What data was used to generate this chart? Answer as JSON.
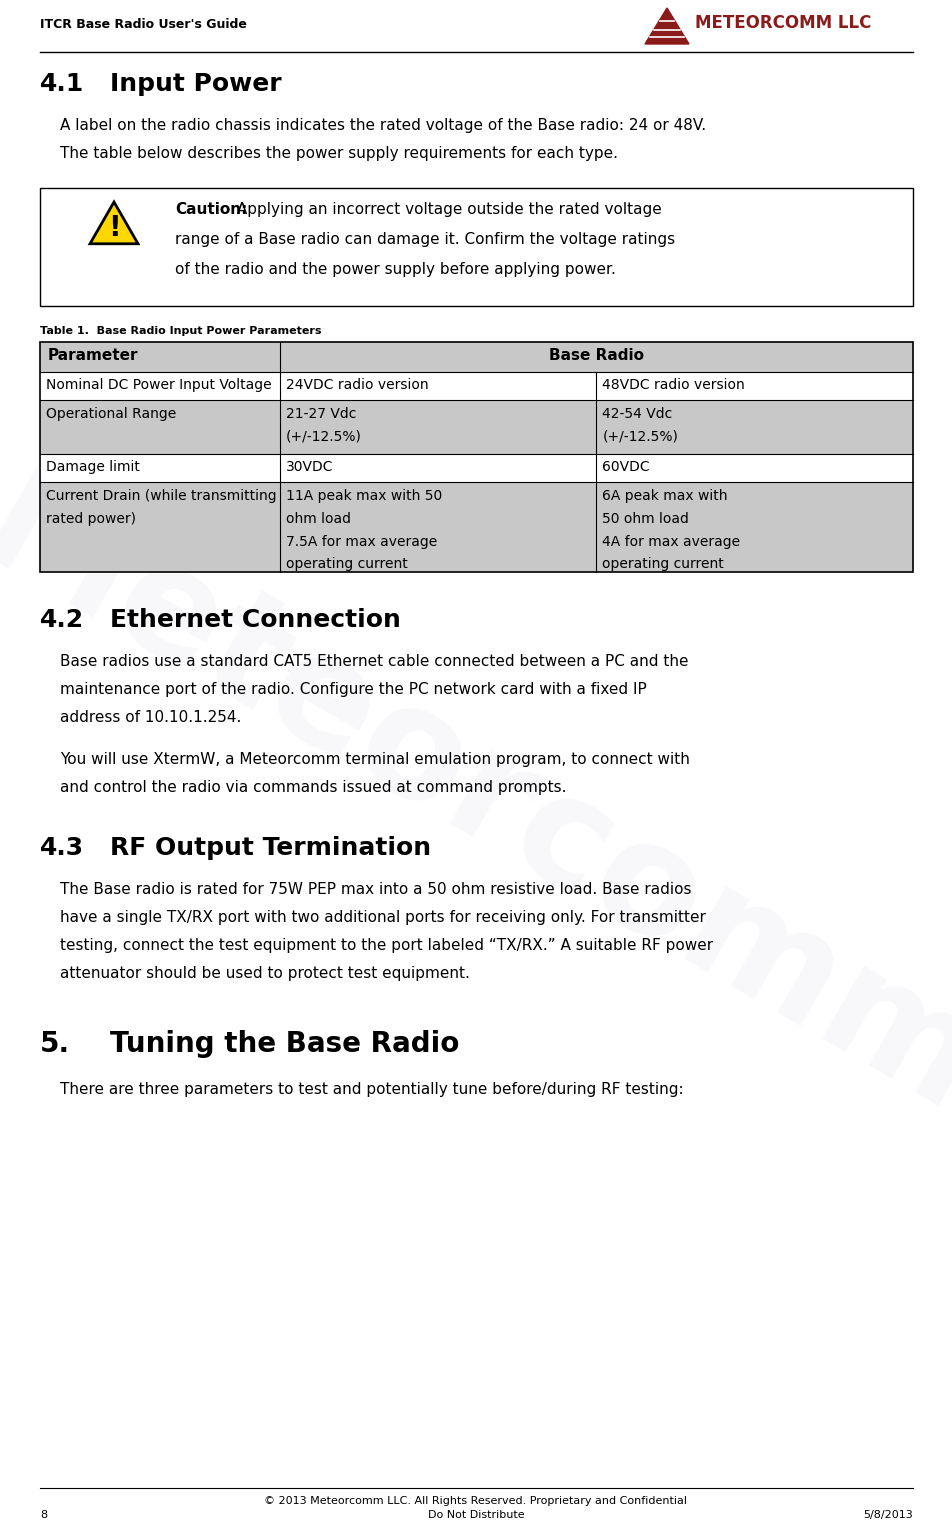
{
  "header_left": "ITCR Base Radio User's Guide",
  "logo_text": "METEORCOMM LLC",
  "meteorcomm_red": "#8B1A1A",
  "section_41_num": "4.1",
  "section_41_title": "Input Power",
  "section_41_body1_lines": [
    "A label on the radio chassis indicates the rated voltage of the Base radio: 24 or 48V.",
    "The table below describes the power supply requirements for each type."
  ],
  "caution_bold": "Caution:",
  "caution_rest_line1": " Applying an incorrect voltage outside the rated voltage",
  "caution_line2": "range of a Base radio can damage it. Confirm the voltage ratings",
  "caution_line3": "of the radio and the power supply before applying power.",
  "table_caption": "Table 1.  Base Radio Input Power Parameters",
  "col1_header": "Parameter",
  "col23_header": "Base Radio",
  "row0": [
    "Nominal DC Power Input Voltage",
    "24VDC radio version",
    "48VDC radio version"
  ],
  "row1": [
    "Operational Range",
    "21-27 Vdc\n(+/-12.5%)",
    "42-54 Vdc\n(+/-12.5%)"
  ],
  "row2": [
    "Damage limit",
    "30VDC",
    "60VDC"
  ],
  "row3_c1": "Current Drain (while transmitting\nrated power)",
  "row3_c2": "11A peak max with 50\nohm load\n7.5A for max average\noperating current",
  "row3_c3": "6A peak max with\n50 ohm load\n4A for max average\noperating current",
  "section_42_num": "4.2",
  "section_42_title": "Ethernet Connection",
  "section_42_body1_lines": [
    "Base radios use a standard CAT5 Ethernet cable connected between a PC and the",
    "maintenance port of the radio. Configure the PC network card with a fixed IP",
    "address of 10.10.1.254."
  ],
  "section_42_body2_lines": [
    "You will use XtermW, a Meteorcomm terminal emulation program, to connect with",
    "and control the radio via commands issued at command prompts."
  ],
  "section_43_num": "4.3",
  "section_43_title": "RF Output Termination",
  "section_43_body1_lines": [
    "The Base radio is rated for 75W PEP max into a 50 ohm resistive load. Base radios",
    "have a single TX/RX port with two additional ports for receiving only. For transmitter",
    "testing, connect the test equipment to the port labeled “TX/RX.” A suitable RF power",
    "attenuator should be used to protect test equipment."
  ],
  "section_5_num": "5.",
  "section_5_title": "Tuning the Base Radio",
  "section_5_body1": "There are three parameters to test and potentially tune before/during RF testing:",
  "footer_copyright": "© 2013 Meteorcomm LLC. All Rights Reserved. Proprietary and Confidential",
  "footer_page": "8",
  "footer_date": "5/8/2013",
  "footer_distribute": "Do Not Distribute",
  "bg_color": "#ffffff",
  "text_color": "#000000",
  "table_header_bg": "#c8c8c8",
  "table_white_bg": "#ffffff",
  "table_border": "#000000",
  "caution_box_border": "#000000",
  "warning_yellow": "#FFD700",
  "warning_black": "#000000",
  "watermark_color": "#8888bb"
}
